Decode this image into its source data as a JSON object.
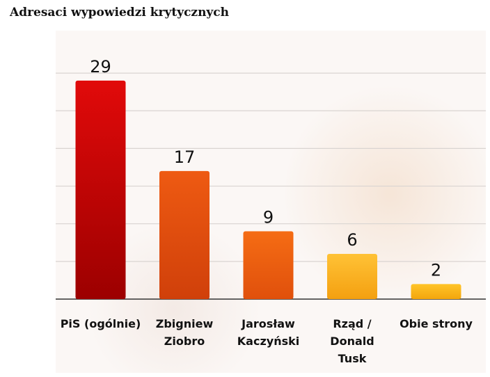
{
  "title": "Adresaci wypowiedzi krytycznych",
  "chart_data": {
    "type": "bar",
    "title": "",
    "xlabel": "",
    "ylabel": "",
    "ylim": [
      0,
      32
    ],
    "grid": true,
    "categories": [
      [
        "PiS (ogólnie)"
      ],
      [
        "Zbigniew",
        "Ziobro"
      ],
      [
        "Jarosław",
        "Kaczyński"
      ],
      [
        "Rząd /",
        "Donald",
        "Tusk"
      ],
      [
        "Obie strony"
      ]
    ],
    "values": [
      29,
      17,
      9,
      6,
      2
    ],
    "colors": [
      [
        "#e10a0a",
        "#9c0000"
      ],
      [
        "#ee5a12",
        "#d0400a"
      ],
      [
        "#f56c14",
        "#e0500c"
      ],
      [
        "#ffc236",
        "#f4a010"
      ],
      [
        "#ffc428",
        "#f3a60d"
      ]
    ]
  }
}
